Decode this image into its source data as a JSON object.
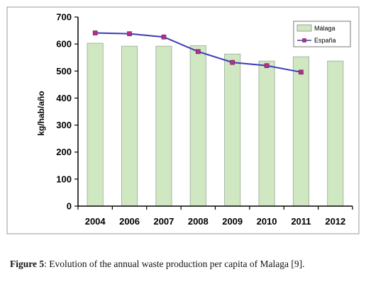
{
  "chart_data": {
    "type": "bar",
    "categories": [
      "2004",
      "2006",
      "2007",
      "2008",
      "2009",
      "2010",
      "2011",
      "2012"
    ],
    "ylabel": "kg/hab/año",
    "xlabel": "",
    "ylim": [
      0,
      700
    ],
    "yticks": [
      0,
      100,
      200,
      300,
      400,
      500,
      600,
      700
    ],
    "grid": false,
    "legend_position": "top-right",
    "series": [
      {
        "name": "Málaga",
        "type": "bar",
        "color": "#cfe8c1",
        "values": [
          603,
          592,
          592,
          594,
          563,
          537,
          553,
          537
        ]
      },
      {
        "name": "España",
        "type": "line",
        "color": "#3b3bb8",
        "marker_color": "#b0308a",
        "values": [
          641,
          638,
          626,
          572,
          532,
          520,
          496,
          null
        ]
      }
    ]
  },
  "caption": {
    "label": "Figure 5",
    "text": ": Evolution of the annual waste production per capita of Malaga [9]."
  }
}
